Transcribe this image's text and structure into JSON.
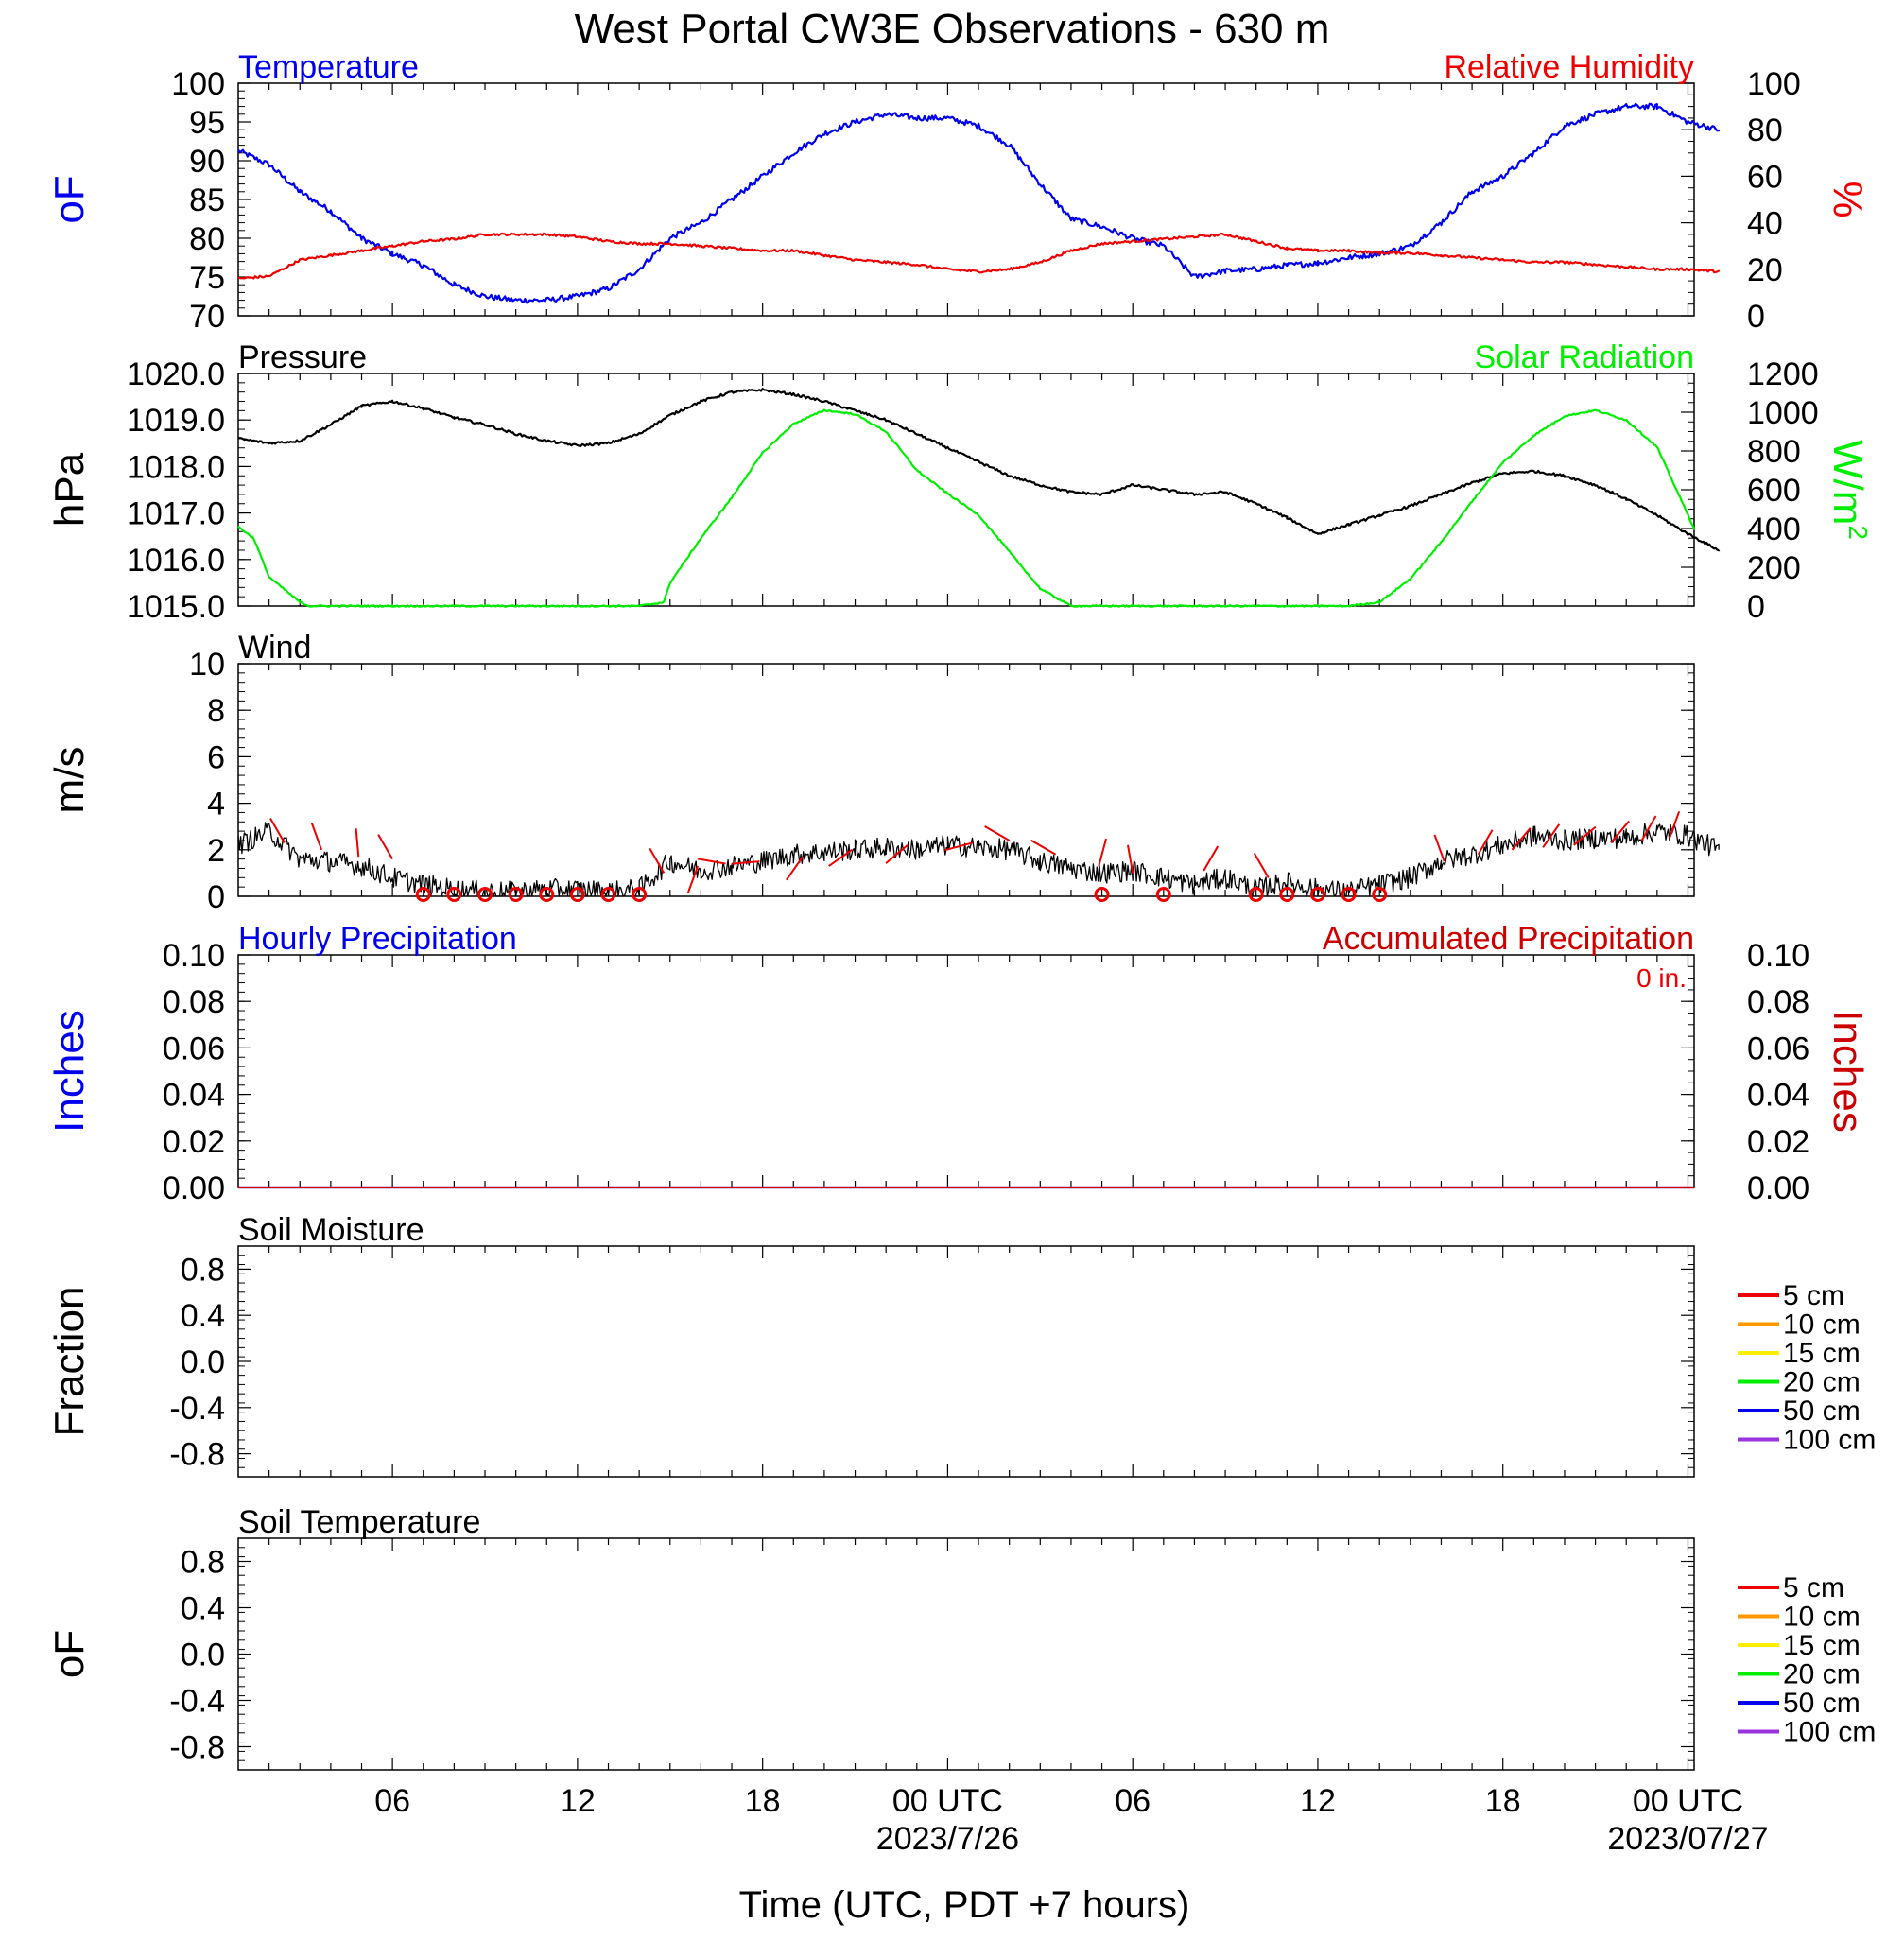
{
  "title": "West Portal CW3E Observations - 630 m",
  "xlabel": "Time (UTC, PDT +7 hours)",
  "x_ticks": [
    {
      "hour": 6,
      "label": "06"
    },
    {
      "hour": 12,
      "label": "12"
    },
    {
      "hour": 18,
      "label": "18"
    },
    {
      "hour": 24,
      "label": "00 UTC"
    },
    {
      "hour": 30,
      "label": "06"
    },
    {
      "hour": 36,
      "label": "12"
    },
    {
      "hour": 42,
      "label": "18"
    },
    {
      "hour": 48,
      "label": "00 UTC"
    }
  ],
  "x_dates": [
    {
      "hour": 24,
      "label": "2023/7/26"
    },
    {
      "hour": 48,
      "label": "2023/07/27"
    }
  ],
  "x_range_hours": [
    1,
    48.2
  ],
  "chart_data": [
    {
      "id": "temp-rh",
      "type": "line",
      "title_left": "Temperature",
      "title_right": "Relative Humidity",
      "ylabel_left": "oF",
      "ylabel_right": "%",
      "ylim_left": [
        70,
        100
      ],
      "ylim_right": [
        0,
        100
      ],
      "yticks_left": [
        "100",
        "95",
        "90",
        "85",
        "80",
        "75",
        "70"
      ],
      "yticks_right": [
        "100",
        "80",
        "60",
        "40",
        "20",
        "0"
      ],
      "series": [
        {
          "name": "Temperature",
          "axis": "left",
          "color": "#0000ee",
          "x": [
            1,
            2,
            3,
            4,
            5,
            6,
            7,
            8,
            9,
            10,
            11,
            12,
            13,
            14,
            15,
            16,
            17,
            18,
            19,
            20,
            21,
            22,
            23,
            24,
            25,
            26,
            27,
            28,
            29,
            30,
            31,
            32,
            33,
            34,
            35,
            36,
            37,
            38,
            39,
            40,
            41,
            42,
            43,
            44,
            45,
            46,
            47,
            48,
            49
          ],
          "y": [
            91.3,
            89.5,
            86,
            83.5,
            80,
            78,
            76.5,
            74,
            72.5,
            72,
            72,
            72.5,
            73.5,
            76,
            80,
            82,
            85,
            88,
            91,
            93.5,
            95,
            96,
            95.5,
            95.5,
            94.5,
            92,
            87,
            82.5,
            81.5,
            80,
            79,
            75,
            75.8,
            76,
            76.5,
            76.8,
            77.5,
            78,
            79,
            82,
            86,
            88,
            91,
            94.5,
            96,
            97,
            97,
            95,
            94
          ]
        },
        {
          "name": "Relative Humidity",
          "axis": "right",
          "color": "#ee0000",
          "x": [
            1,
            2,
            3,
            4,
            5,
            6,
            7,
            8,
            9,
            10,
            11,
            12,
            13,
            14,
            15,
            16,
            17,
            18,
            19,
            20,
            21,
            22,
            23,
            24,
            25,
            26,
            27,
            28,
            29,
            30,
            31,
            32,
            33,
            34,
            35,
            36,
            37,
            38,
            39,
            40,
            41,
            42,
            43,
            44,
            45,
            46,
            47,
            48,
            49
          ],
          "y": [
            16,
            17,
            24,
            26,
            28,
            30,
            32,
            33,
            35,
            35,
            35,
            34,
            32,
            31,
            31,
            30,
            29,
            28,
            28,
            26,
            24,
            23,
            22,
            20,
            19,
            20,
            23,
            28,
            31,
            32,
            33,
            34,
            35,
            32,
            29,
            28,
            28,
            27,
            27,
            26,
            25,
            24,
            23,
            23,
            22,
            21,
            20,
            20,
            19
          ]
        }
      ]
    },
    {
      "id": "pressure-solar",
      "type": "line",
      "title_left": "Pressure",
      "title_right": "Solar Radiation",
      "ylabel_left": "hPa",
      "ylabel_right": "W/m",
      "ylabel_right_sup": "2",
      "ylim_left": [
        1015,
        1020
      ],
      "ylim_right": [
        0,
        1200
      ],
      "yticks_left": [
        "1020.0",
        "1019.0",
        "1018.0",
        "1017.0",
        "1016.0",
        "1015.0"
      ],
      "yticks_right": [
        "1200",
        "1000",
        "800",
        "600",
        "400",
        "200",
        "0"
      ],
      "series": [
        {
          "name": "Pressure",
          "axis": "left",
          "color": "#000000",
          "x": [
            1,
            2,
            3,
            4,
            5,
            6,
            7,
            8,
            9,
            10,
            11,
            12,
            13,
            14,
            15,
            16,
            17,
            18,
            19,
            20,
            21,
            22,
            23,
            24,
            25,
            26,
            27,
            28,
            29,
            30,
            31,
            32,
            33,
            34,
            35,
            36,
            37,
            38,
            39,
            40,
            41,
            42,
            43,
            44,
            45,
            46,
            47,
            48,
            49
          ],
          "y": [
            1018.6,
            1018.5,
            1018.55,
            1018.9,
            1019.3,
            1019.4,
            1019.25,
            1019.05,
            1018.9,
            1018.7,
            1018.55,
            1018.45,
            1018.5,
            1018.7,
            1019.1,
            1019.4,
            1019.6,
            1019.65,
            1019.55,
            1019.4,
            1019.2,
            1019.0,
            1018.7,
            1018.4,
            1018.1,
            1017.8,
            1017.6,
            1017.45,
            1017.4,
            1017.6,
            1017.5,
            1017.4,
            1017.45,
            1017.2,
            1016.9,
            1016.55,
            1016.75,
            1016.95,
            1017.15,
            1017.4,
            1017.65,
            1017.85,
            1017.9,
            1017.8,
            1017.6,
            1017.3,
            1016.95,
            1016.55,
            1016.2
          ]
        },
        {
          "name": "Solar Radiation",
          "axis": "right",
          "color": "#00ee00",
          "x": [
            1,
            1.5,
            2,
            3,
            3.3,
            4,
            5,
            6,
            7,
            8,
            9,
            10,
            11,
            12,
            13,
            14,
            14.8,
            15,
            16,
            17,
            18,
            19,
            20,
            21,
            22,
            23,
            24,
            25,
            26,
            27,
            28,
            29,
            30,
            31,
            32,
            33,
            34,
            35,
            36,
            37,
            38,
            39,
            40,
            41,
            42,
            43,
            44,
            45,
            46,
            47,
            48.2
          ],
          "y": [
            410,
            350,
            150,
            20,
            0,
            0,
            0,
            0,
            0,
            0,
            0,
            0,
            0,
            0,
            0,
            0,
            20,
            120,
            350,
            560,
            790,
            940,
            1010,
            990,
            900,
            700,
            580,
            470,
            280,
            90,
            0,
            0,
            0,
            0,
            0,
            0,
            0,
            0,
            0,
            0,
            20,
            140,
            330,
            540,
            740,
            880,
            980,
            1010,
            960,
            820,
            400
          ]
        }
      ]
    },
    {
      "id": "wind",
      "type": "line",
      "title_left": "Wind",
      "ylabel_left": "m/s",
      "ylim_left": [
        0,
        10
      ],
      "yticks_left": [
        "10",
        "8",
        "6",
        "4",
        "2",
        "0"
      ],
      "series": [
        {
          "name": "Wind",
          "axis": "left",
          "color": "#000000",
          "x": [
            1,
            2,
            3,
            4,
            5,
            6,
            7,
            8,
            9,
            10,
            11,
            12,
            13,
            14,
            15,
            16,
            17,
            18,
            19,
            20,
            21,
            22,
            23,
            24,
            25,
            26,
            27,
            28,
            29,
            30,
            31,
            32,
            33,
            34,
            35,
            36,
            37,
            38,
            39,
            40,
            41,
            42,
            43,
            44,
            45,
            46,
            47,
            48,
            49
          ],
          "y": [
            2.2,
            2.8,
            1.6,
            1.5,
            1.3,
            0.8,
            0.5,
            0.3,
            0.2,
            0.2,
            0.3,
            0.3,
            0.2,
            0.3,
            1.5,
            1.1,
            1.3,
            1.5,
            1.8,
            1.9,
            2.0,
            2.1,
            2.0,
            2.2,
            2.1,
            2.0,
            1.5,
            1.2,
            1.0,
            1.1,
            0.8,
            0.5,
            0.8,
            0.3,
            0.6,
            0.3,
            0.2,
            0.5,
            0.8,
            1.5,
            1.8,
            2.2,
            2.6,
            2.4,
            2.5,
            2.5,
            2.8,
            2.6,
            2.0
          ]
        }
      ]
    },
    {
      "id": "precip",
      "type": "line",
      "title_left": "Hourly Precipitation",
      "title_right": "Accumulated Precipitation",
      "annotation": "0 in.",
      "ylabel_left": "Inches",
      "ylabel_right": "Inches",
      "ylim_left": [
        0,
        0.1
      ],
      "ylim_right": [
        0,
        0.1
      ],
      "yticks_left": [
        "0.10",
        "0.08",
        "0.06",
        "0.04",
        "0.02",
        "0.00"
      ],
      "yticks_right": [
        "0.10",
        "0.08",
        "0.06",
        "0.04",
        "0.02",
        "0.00"
      ],
      "series": [
        {
          "name": "Hourly Precipitation",
          "axis": "left",
          "color": "#0000ee",
          "x": [
            1,
            48.2
          ],
          "y": [
            0,
            0
          ]
        },
        {
          "name": "Accumulated Precipitation",
          "axis": "right",
          "color": "#cc0000",
          "x": [
            1,
            48.2
          ],
          "y": [
            0,
            0
          ]
        }
      ]
    },
    {
      "id": "soil-moisture",
      "type": "line",
      "title_left": "Soil Moisture",
      "ylabel_left": "Fraction",
      "ylim_left": [
        -1,
        1
      ],
      "yticks_left": [
        "0.8",
        "0.4",
        "0.0",
        "-0.4",
        "-0.8"
      ],
      "legend": [
        {
          "label": "5 cm",
          "color": "#ee0000"
        },
        {
          "label": "10 cm",
          "color": "#ff9900"
        },
        {
          "label": "15 cm",
          "color": "#ffee00"
        },
        {
          "label": "20 cm",
          "color": "#00ee00"
        },
        {
          "label": "50 cm",
          "color": "#0000ee"
        },
        {
          "label": "100 cm",
          "color": "#9933dd"
        }
      ],
      "series": []
    },
    {
      "id": "soil-temp",
      "type": "line",
      "title_left": "Soil Temperature",
      "ylabel_left": "oF",
      "ylim_left": [
        -1,
        1
      ],
      "yticks_left": [
        "0.8",
        "0.4",
        "0.0",
        "-0.4",
        "-0.8"
      ],
      "legend": [
        {
          "label": "5 cm",
          "color": "#ee0000"
        },
        {
          "label": "10 cm",
          "color": "#ff9900"
        },
        {
          "label": "15 cm",
          "color": "#ffee00"
        },
        {
          "label": "20 cm",
          "color": "#00ee00"
        },
        {
          "label": "50 cm",
          "color": "#0000ee"
        },
        {
          "label": "100 cm",
          "color": "#9933dd"
        }
      ],
      "series": []
    }
  ],
  "wind_barbs": [
    {
      "hour": 2.5,
      "speed": 2.3,
      "dir": 330
    },
    {
      "hour": 3.7,
      "speed": 2.0,
      "dir": 340
    },
    {
      "hour": 4.9,
      "speed": 1.7,
      "dir": 355
    },
    {
      "hour": 6.0,
      "speed": 1.6,
      "dir": 330
    },
    {
      "hour": 14.8,
      "speed": 1.0,
      "dir": 330
    },
    {
      "hour": 15.9,
      "speed": 1.3,
      "dir": 200
    },
    {
      "hour": 16.8,
      "speed": 1.4,
      "dir": 280
    },
    {
      "hour": 17.9,
      "speed": 1.5,
      "dir": 265
    },
    {
      "hour": 19.3,
      "speed": 1.7,
      "dir": 215
    },
    {
      "hour": 20.9,
      "speed": 2.0,
      "dir": 235
    },
    {
      "hour": 22.7,
      "speed": 2.2,
      "dir": 230
    },
    {
      "hour": 24.8,
      "speed": 2.3,
      "dir": 255
    },
    {
      "hour": 26.0,
      "speed": 2.4,
      "dir": 300
    },
    {
      "hour": 27.5,
      "speed": 1.8,
      "dir": 300
    },
    {
      "hour": 28.9,
      "speed": 1.3,
      "dir": 15
    },
    {
      "hour": 30.0,
      "speed": 1.0,
      "dir": 350
    },
    {
      "hour": 32.3,
      "speed": 1.1,
      "dir": 30
    },
    {
      "hour": 34.4,
      "speed": 0.8,
      "dir": 330
    },
    {
      "hour": 40.1,
      "speed": 1.5,
      "dir": 340
    },
    {
      "hour": 41.2,
      "speed": 1.8,
      "dir": 30
    },
    {
      "hour": 42.3,
      "speed": 2.0,
      "dir": 40
    },
    {
      "hour": 43.3,
      "speed": 2.1,
      "dir": 35
    },
    {
      "hour": 44.3,
      "speed": 2.2,
      "dir": 50
    },
    {
      "hour": 45.5,
      "speed": 2.3,
      "dir": 40
    },
    {
      "hour": 46.5,
      "speed": 2.4,
      "dir": 30
    },
    {
      "hour": 47.4,
      "speed": 2.5,
      "dir": 20
    }
  ],
  "wind_calm_hours": [
    7,
    8,
    9,
    10,
    11,
    12,
    13,
    14,
    29,
    31,
    34,
    35,
    36,
    37,
    38
  ]
}
